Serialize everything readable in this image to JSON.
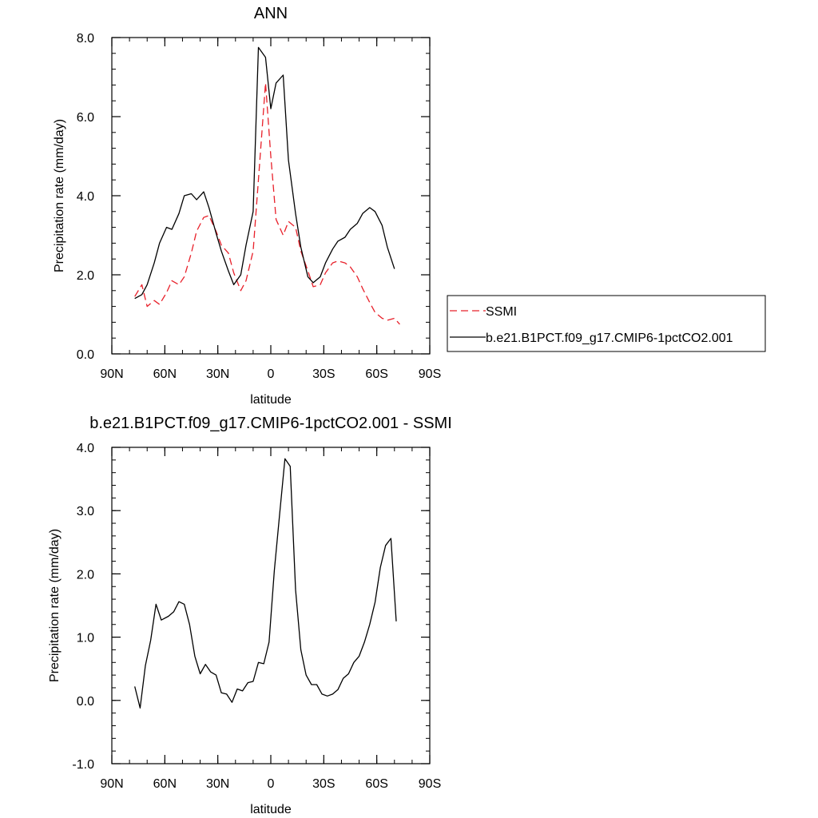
{
  "chart_data": [
    {
      "type": "line",
      "title": "ANN",
      "xlabel": "latitude",
      "ylabel": "Precipitation rate (mm/day)",
      "xlim": [
        90,
        -90
      ],
      "ylim": [
        0,
        8
      ],
      "x_ticks": [
        90,
        60,
        30,
        0,
        -30,
        -60,
        -90
      ],
      "x_tick_labels": [
        "90N",
        "60N",
        "30N",
        "0",
        "30S",
        "60S",
        "90S"
      ],
      "y_ticks": [
        0,
        2,
        4,
        6,
        8
      ],
      "y_tick_labels": [
        "0.0",
        "2.0",
        "4.0",
        "6.0",
        "8.0"
      ],
      "legend_position": "right",
      "series": [
        {
          "name": "SSMI",
          "color": "#e8202a",
          "dash": "dashed",
          "x": [
            77,
            73,
            70,
            66,
            63,
            59,
            56,
            52,
            49,
            45,
            42,
            38,
            35,
            31,
            28,
            24,
            21,
            17,
            14,
            10,
            7,
            3,
            0,
            -3,
            -7,
            -10,
            -14,
            -17,
            -21,
            -24,
            -28,
            -31,
            -35,
            -38,
            -42,
            -45,
            -49,
            -52,
            -56,
            -59,
            -63,
            -66,
            -70,
            -73
          ],
          "y": [
            1.45,
            1.75,
            1.2,
            1.35,
            1.25,
            1.55,
            1.85,
            1.75,
            1.95,
            2.55,
            3.1,
            3.45,
            3.5,
            3.1,
            2.75,
            2.55,
            2.05,
            1.6,
            1.85,
            2.6,
            4.4,
            6.85,
            5.0,
            3.4,
            3.0,
            3.35,
            3.2,
            2.6,
            2.1,
            1.7,
            1.75,
            2.05,
            2.3,
            2.35,
            2.3,
            2.2,
            1.95,
            1.65,
            1.3,
            1.05,
            0.9,
            0.85,
            0.9,
            0.75
          ]
        },
        {
          "name": "b.e21.B1PCT.f09_g17.CMIP6-1pctCO2.001",
          "color": "#000000",
          "dash": "solid",
          "x": [
            77,
            73,
            70,
            66,
            63,
            59,
            56,
            52,
            49,
            45,
            42,
            38,
            35,
            31,
            28,
            24,
            21,
            17,
            14,
            10,
            7,
            3,
            0,
            -3,
            -7,
            -10,
            -14,
            -17,
            -21,
            -24,
            -28,
            -31,
            -35,
            -38,
            -42,
            -45,
            -49,
            -52,
            -56,
            -59,
            -63,
            -66,
            -70
          ],
          "y": [
            1.4,
            1.5,
            1.75,
            2.3,
            2.8,
            3.2,
            3.15,
            3.55,
            4.0,
            4.05,
            3.9,
            4.1,
            3.7,
            3.05,
            2.6,
            2.1,
            1.75,
            2.0,
            2.75,
            3.6,
            7.75,
            7.5,
            6.2,
            6.85,
            7.05,
            4.9,
            3.55,
            2.7,
            1.95,
            1.8,
            1.95,
            2.3,
            2.65,
            2.85,
            2.95,
            3.15,
            3.3,
            3.55,
            3.7,
            3.6,
            3.25,
            2.7,
            2.15
          ]
        }
      ]
    },
    {
      "type": "line",
      "title": "b.e21.B1PCT.f09_g17.CMIP6-1pctCO2.001 - SSMI",
      "xlabel": "latitude",
      "ylabel": "Precipitation rate (mm/day)",
      "xlim": [
        90,
        -90
      ],
      "ylim": [
        -1,
        4
      ],
      "x_ticks": [
        90,
        60,
        30,
        0,
        -30,
        -60,
        -90
      ],
      "x_tick_labels": [
        "90N",
        "60N",
        "30N",
        "0",
        "30S",
        "60S",
        "90S"
      ],
      "y_ticks": [
        -1,
        0,
        1,
        2,
        3,
        4
      ],
      "y_tick_labels": [
        "-1.0",
        "0.0",
        "1.0",
        "2.0",
        "3.0",
        "4.0"
      ],
      "series": [
        {
          "color": "#000000",
          "dash": "solid",
          "x": [
            77,
            74,
            71,
            68,
            65,
            62,
            58,
            55,
            52,
            49,
            46,
            43,
            40,
            37,
            34,
            31,
            28,
            25,
            22,
            19,
            16,
            13,
            10,
            7,
            4,
            1,
            -2,
            -5,
            -8,
            -11,
            -14,
            -17,
            -20,
            -23,
            -26,
            -29,
            -32,
            -35,
            -38,
            -41,
            -44,
            -47,
            -50,
            -53,
            -56,
            -59,
            -62,
            -65,
            -68,
            -71
          ],
          "y": [
            0.22,
            -0.12,
            0.55,
            0.95,
            1.52,
            1.27,
            1.33,
            1.4,
            1.56,
            1.52,
            1.2,
            0.7,
            0.42,
            0.57,
            0.45,
            0.4,
            0.12,
            0.1,
            -0.03,
            0.18,
            0.15,
            0.28,
            0.3,
            0.6,
            0.58,
            0.92,
            2.05,
            2.95,
            3.82,
            3.7,
            1.75,
            0.8,
            0.4,
            0.25,
            0.25,
            0.1,
            0.07,
            0.1,
            0.17,
            0.35,
            0.42,
            0.6,
            0.7,
            0.92,
            1.2,
            1.55,
            2.1,
            2.45,
            2.56,
            1.25
          ]
        }
      ]
    }
  ]
}
